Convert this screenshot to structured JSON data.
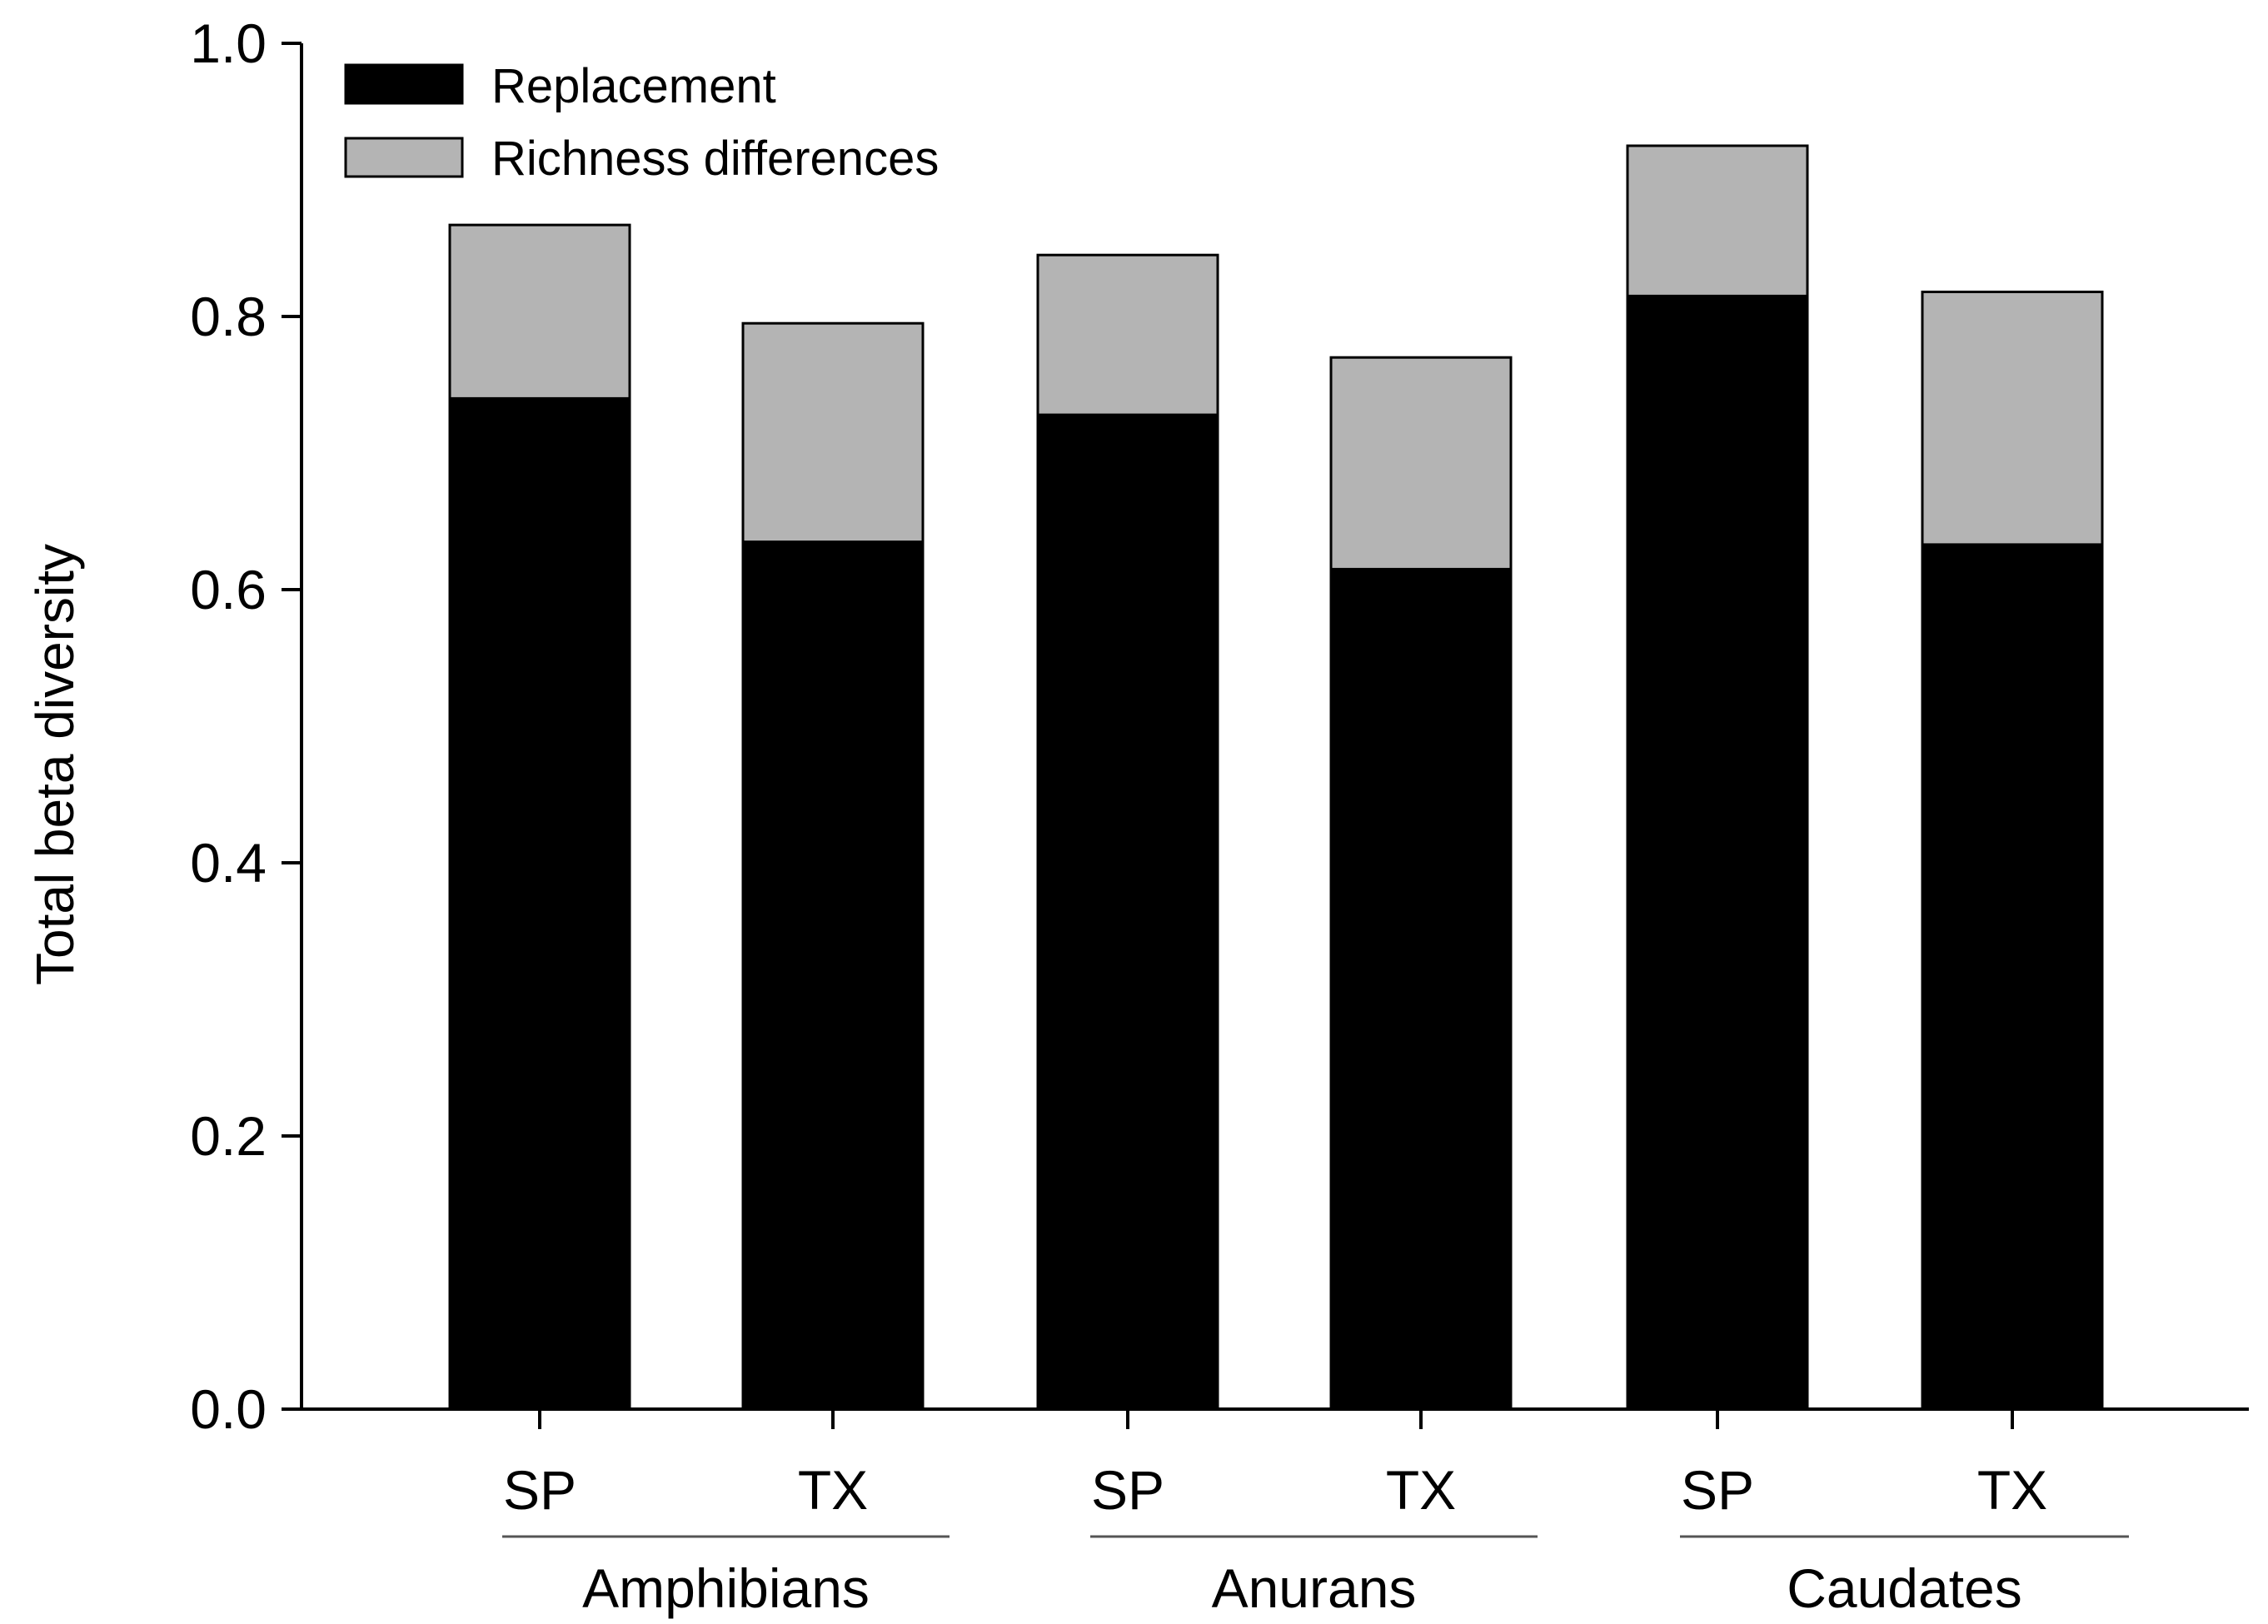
{
  "chart_data": {
    "type": "bar",
    "stacked": true,
    "title": "",
    "xlabel": "",
    "ylabel": "Total beta diversity",
    "ylim": [
      0,
      1.0
    ],
    "yticks": [
      "0.0",
      "0.2",
      "0.4",
      "0.6",
      "0.8",
      "1.0"
    ],
    "categories": [
      "SP",
      "TX",
      "SP",
      "TX",
      "SP",
      "TX"
    ],
    "groups": [
      {
        "label": "Amphibians",
        "categories": [
          "SP",
          "TX"
        ]
      },
      {
        "label": "Anurans",
        "categories": [
          "SP",
          "TX"
        ]
      },
      {
        "label": "Caudates",
        "categories": [
          "SP",
          "TX"
        ]
      }
    ],
    "series": [
      {
        "name": "Replacement",
        "color": "#000000",
        "values": [
          0.74,
          0.635,
          0.728,
          0.615,
          0.815,
          0.633
        ]
      },
      {
        "name": "Richness differences",
        "color": "#b4b4b4",
        "values": [
          0.127,
          0.16,
          0.117,
          0.155,
          0.11,
          0.185
        ]
      }
    ],
    "legend": {
      "position": "top-left",
      "entries": [
        "Replacement",
        "Richness differences"
      ]
    },
    "grid": false
  }
}
